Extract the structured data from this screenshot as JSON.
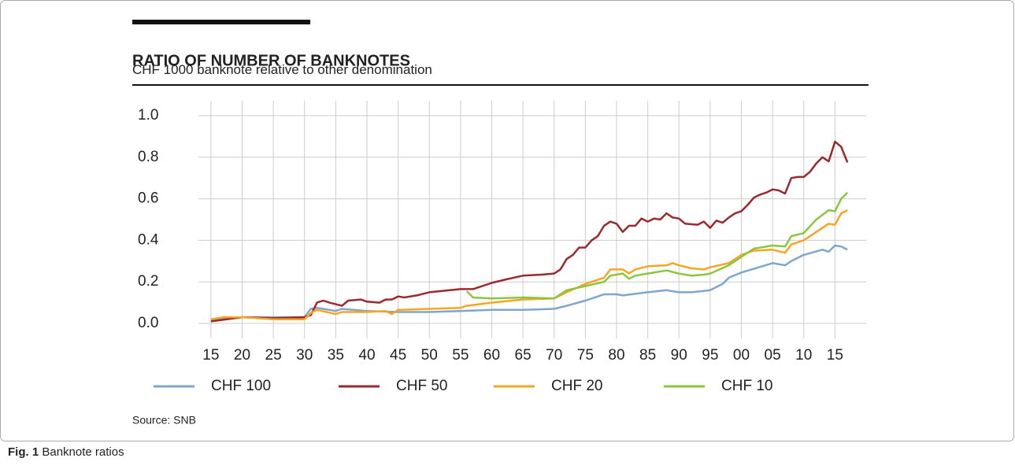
{
  "chart_data": {
    "type": "line",
    "title": "RATIO OF NUMBER OF BANKNOTES",
    "subtitle": "CHF 1000 banknote relative to other denomination",
    "source": "Source: SNB",
    "xlim": [
      1913,
      2020
    ],
    "xticks": [
      {
        "value": 1915,
        "label": "15"
      },
      {
        "value": 1920,
        "label": "20"
      },
      {
        "value": 1925,
        "label": "25"
      },
      {
        "value": 1930,
        "label": "30"
      },
      {
        "value": 1935,
        "label": "35"
      },
      {
        "value": 1940,
        "label": "40"
      },
      {
        "value": 1945,
        "label": "45"
      },
      {
        "value": 1950,
        "label": "50"
      },
      {
        "value": 1955,
        "label": "55"
      },
      {
        "value": 1960,
        "label": "60"
      },
      {
        "value": 1965,
        "label": "65"
      },
      {
        "value": 1970,
        "label": "70"
      },
      {
        "value": 1975,
        "label": "75"
      },
      {
        "value": 1980,
        "label": "80"
      },
      {
        "value": 1985,
        "label": "85"
      },
      {
        "value": 1990,
        "label": "90"
      },
      {
        "value": 1995,
        "label": "95"
      },
      {
        "value": 2000,
        "label": "00"
      },
      {
        "value": 2005,
        "label": "05"
      },
      {
        "value": 2010,
        "label": "10"
      },
      {
        "value": 2015,
        "label": "15"
      }
    ],
    "ylim": [
      0,
      1
    ],
    "yticks": [
      {
        "value": 0,
        "label": "0.0"
      },
      0.2,
      0.4,
      0.6,
      0.8,
      {
        "value": 1,
        "label": "1.0"
      }
    ],
    "grid": true,
    "series": [
      {
        "name": "CHF 100",
        "color": "#7fa6cc",
        "x": [
          1915,
          1920,
          1930,
          1931,
          1932,
          1933,
          1935,
          1936,
          1940,
          1945,
          1950,
          1955,
          1960,
          1965,
          1970,
          1972,
          1975,
          1978,
          1980,
          1981,
          1985,
          1988,
          1990,
          1992,
          1995,
          1997,
          1998,
          2000,
          2005,
          2007,
          2008,
          2010,
          2013,
          2014,
          2015,
          2016,
          2017
        ],
        "values": [
          0.02,
          0.03,
          0.03,
          0.07,
          0.075,
          0.07,
          0.06,
          0.07,
          0.06,
          0.055,
          0.055,
          0.06,
          0.065,
          0.065,
          0.07,
          0.085,
          0.11,
          0.14,
          0.14,
          0.135,
          0.15,
          0.16,
          0.15,
          0.15,
          0.16,
          0.19,
          0.22,
          0.245,
          0.29,
          0.28,
          0.3,
          0.33,
          0.355,
          0.345,
          0.375,
          0.37,
          0.355
        ]
      },
      {
        "name": "CHF 50",
        "color": "#9b2a2f",
        "x": [
          1915,
          1920,
          1925,
          1930,
          1931,
          1932,
          1933,
          1934,
          1936,
          1937,
          1939,
          1940,
          1942,
          1943,
          1944,
          1945,
          1946,
          1948,
          1950,
          1955,
          1957,
          1960,
          1962,
          1965,
          1968,
          1970,
          1971,
          1972,
          1973,
          1974,
          1975,
          1976,
          1977,
          1978,
          1979,
          1980,
          1981,
          1982,
          1983,
          1984,
          1985,
          1986,
          1987,
          1988,
          1989,
          1990,
          1991,
          1993,
          1994,
          1995,
          1996,
          1997,
          1998,
          1999,
          2000,
          2001,
          2002,
          2003,
          2004,
          2005,
          2006,
          2007,
          2008,
          2009,
          2010,
          2011,
          2012,
          2013,
          2014,
          2015,
          2016,
          2017
        ],
        "values": [
          0.01,
          0.03,
          0.025,
          0.03,
          0.04,
          0.1,
          0.11,
          0.1,
          0.085,
          0.11,
          0.115,
          0.105,
          0.1,
          0.115,
          0.115,
          0.13,
          0.125,
          0.135,
          0.15,
          0.165,
          0.165,
          0.195,
          0.21,
          0.23,
          0.235,
          0.24,
          0.26,
          0.31,
          0.33,
          0.365,
          0.365,
          0.4,
          0.42,
          0.47,
          0.49,
          0.48,
          0.44,
          0.47,
          0.47,
          0.505,
          0.49,
          0.505,
          0.5,
          0.53,
          0.51,
          0.505,
          0.48,
          0.475,
          0.49,
          0.46,
          0.495,
          0.485,
          0.51,
          0.53,
          0.54,
          0.57,
          0.605,
          0.62,
          0.63,
          0.645,
          0.64,
          0.625,
          0.7,
          0.705,
          0.705,
          0.73,
          0.77,
          0.8,
          0.78,
          0.875,
          0.85,
          0.775
        ]
      },
      {
        "name": "CHF 20",
        "color": "#f5a623",
        "x": [
          1915,
          1917,
          1920,
          1925,
          1930,
          1931,
          1932,
          1935,
          1936,
          1940,
          1943,
          1944,
          1945,
          1950,
          1955,
          1956,
          1960,
          1965,
          1970,
          1972,
          1975,
          1977,
          1978,
          1979,
          1981,
          1982,
          1983,
          1985,
          1988,
          1989,
          1990,
          1992,
          1994,
          1995,
          1998,
          2000,
          2002,
          2005,
          2007,
          2008,
          2010,
          2012,
          2014,
          2015,
          2016,
          2017
        ],
        "values": [
          0.02,
          0.03,
          0.03,
          0.02,
          0.02,
          0.05,
          0.065,
          0.045,
          0.055,
          0.055,
          0.06,
          0.045,
          0.065,
          0.07,
          0.075,
          0.085,
          0.1,
          0.115,
          0.12,
          0.15,
          0.19,
          0.21,
          0.22,
          0.26,
          0.26,
          0.24,
          0.26,
          0.275,
          0.28,
          0.29,
          0.28,
          0.265,
          0.26,
          0.27,
          0.29,
          0.33,
          0.35,
          0.355,
          0.34,
          0.38,
          0.4,
          0.44,
          0.48,
          0.475,
          0.53,
          0.545
        ]
      },
      {
        "name": "CHF 10",
        "color": "#8cc63f",
        "x": [
          1956,
          1957,
          1960,
          1965,
          1970,
          1972,
          1975,
          1978,
          1979,
          1981,
          1982,
          1983,
          1985,
          1988,
          1990,
          1992,
          1994,
          1995,
          1998,
          2000,
          2002,
          2005,
          2007,
          2008,
          2010,
          2012,
          2014,
          2015,
          2016,
          2017
        ],
        "values": [
          0.155,
          0.125,
          0.12,
          0.125,
          0.12,
          0.16,
          0.18,
          0.2,
          0.23,
          0.24,
          0.215,
          0.23,
          0.24,
          0.255,
          0.24,
          0.23,
          0.235,
          0.24,
          0.28,
          0.32,
          0.36,
          0.375,
          0.37,
          0.42,
          0.435,
          0.5,
          0.545,
          0.54,
          0.6,
          0.63
        ]
      }
    ]
  },
  "caption": {
    "label": "Fig. 1",
    "text": "Banknote ratios"
  }
}
